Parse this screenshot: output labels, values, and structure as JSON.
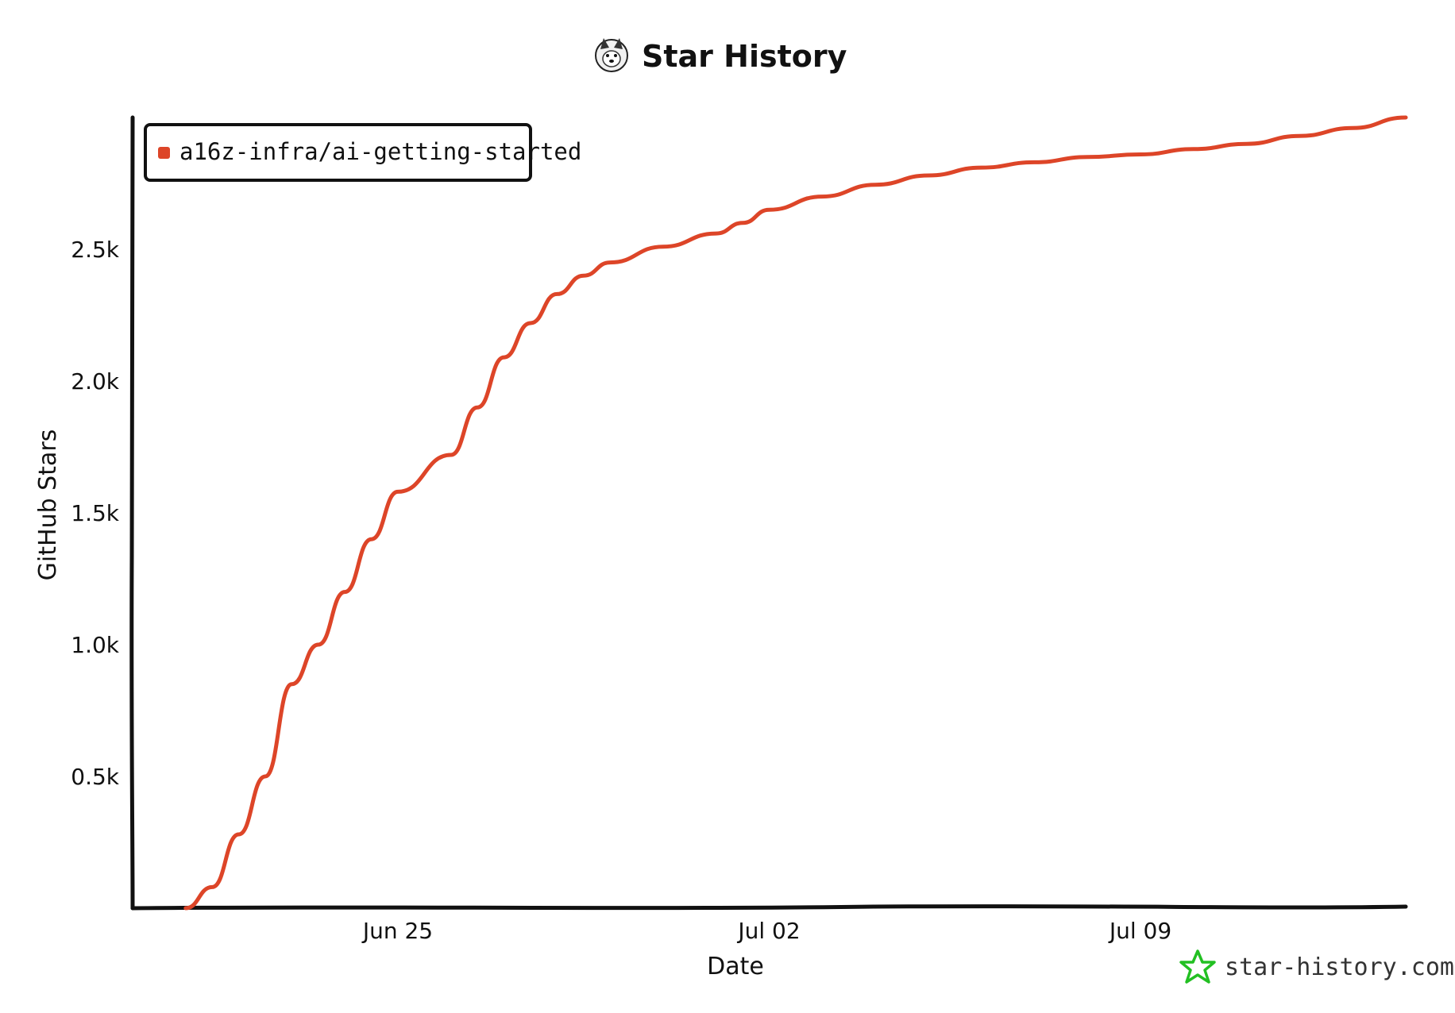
{
  "chart_data": {
    "type": "line",
    "title": "Star History",
    "xlabel": "Date",
    "ylabel": "GitHub Stars",
    "x_range": [
      "2023-06-20",
      "2023-07-14"
    ],
    "ylim": [
      0,
      3000
    ],
    "x_ticks": [
      {
        "date": "2023-06-25",
        "label": "Jun 25"
      },
      {
        "date": "2023-07-02",
        "label": "Jul 02"
      },
      {
        "date": "2023-07-09",
        "label": "Jul 09"
      }
    ],
    "y_ticks": [
      {
        "value": 500,
        "label": "0.5k"
      },
      {
        "value": 1000,
        "label": "1.0k"
      },
      {
        "value": 1500,
        "label": "1.5k"
      },
      {
        "value": 2000,
        "label": "2.0k"
      },
      {
        "value": 2500,
        "label": "2.5k"
      }
    ],
    "grid": false,
    "legend_position": "top-left",
    "series": [
      {
        "name": "a16z-infra/ai-getting-started",
        "color": "#dd4528",
        "points": [
          [
            "2023-06-21",
            0
          ],
          [
            "2023-06-21",
            80
          ],
          [
            "2023-06-22",
            280
          ],
          [
            "2023-06-22",
            500
          ],
          [
            "2023-06-23",
            850
          ],
          [
            "2023-06-23",
            1000
          ],
          [
            "2023-06-24",
            1200
          ],
          [
            "2023-06-24",
            1400
          ],
          [
            "2023-06-25",
            1580
          ],
          [
            "2023-06-26",
            1720
          ],
          [
            "2023-06-26",
            1900
          ],
          [
            "2023-06-27",
            2090
          ],
          [
            "2023-06-27",
            2220
          ],
          [
            "2023-06-28",
            2330
          ],
          [
            "2023-06-28",
            2400
          ],
          [
            "2023-06-29",
            2450
          ],
          [
            "2023-06-30",
            2510
          ],
          [
            "2023-07-01",
            2560
          ],
          [
            "2023-07-01",
            2600
          ],
          [
            "2023-07-02",
            2650
          ],
          [
            "2023-07-03",
            2700
          ],
          [
            "2023-07-04",
            2745
          ],
          [
            "2023-07-05",
            2780
          ],
          [
            "2023-07-06",
            2810
          ],
          [
            "2023-07-07",
            2830
          ],
          [
            "2023-07-08",
            2850
          ],
          [
            "2023-07-09",
            2860
          ],
          [
            "2023-07-10",
            2880
          ],
          [
            "2023-07-11",
            2900
          ],
          [
            "2023-07-12",
            2930
          ],
          [
            "2023-07-13",
            2960
          ],
          [
            "2023-07-14",
            3000
          ]
        ]
      }
    ],
    "watermark": "star-history.com"
  }
}
